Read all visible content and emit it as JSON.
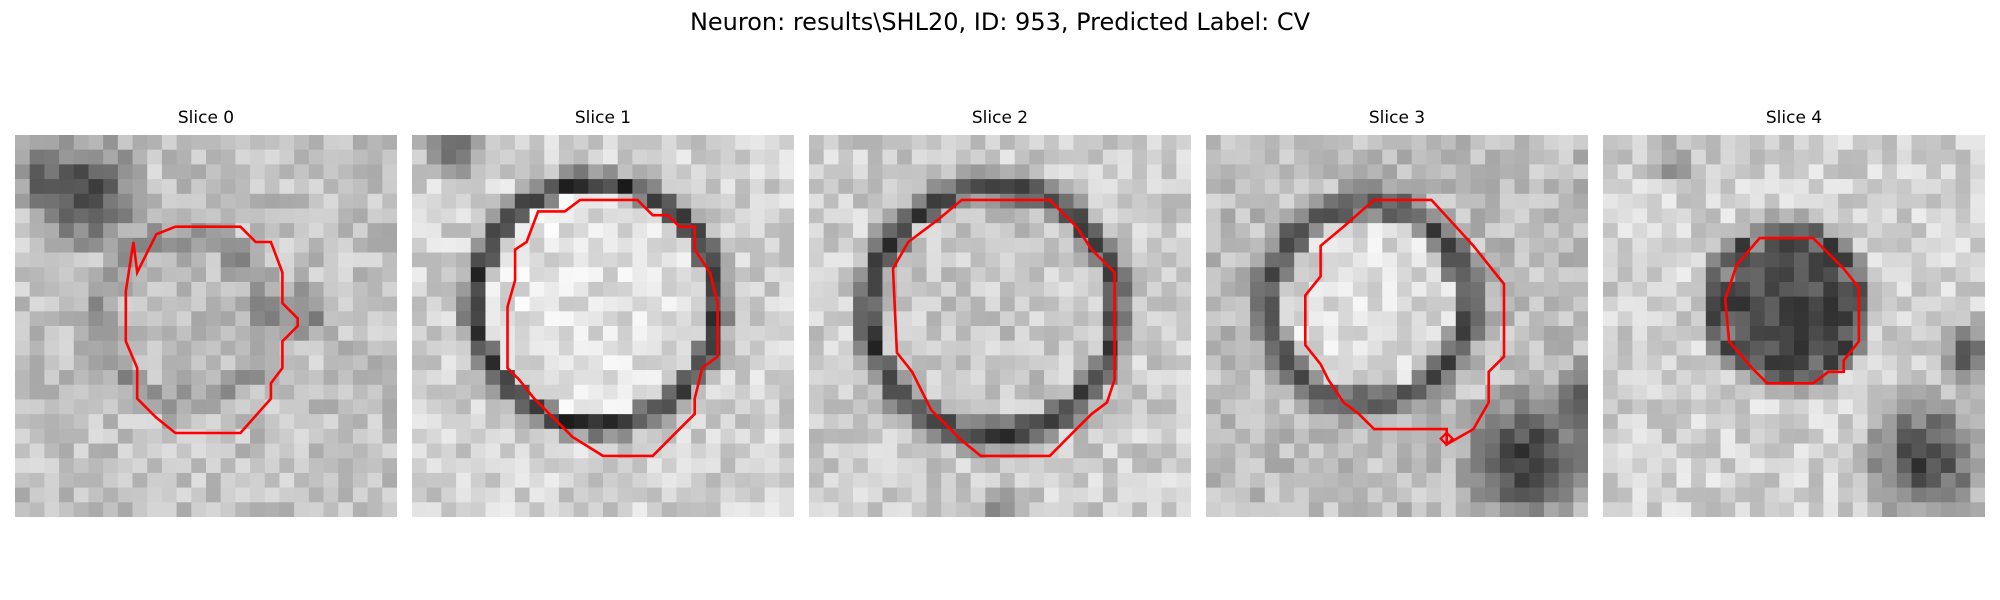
{
  "figure": {
    "suptitle": "Neuron: results\\SHL20, ID: 953, Predicted Label: CV",
    "outline_color": "#ff0000",
    "panels": [
      {
        "title": "Slice 0"
      },
      {
        "title": "Slice 1"
      },
      {
        "title": "Slice 2"
      },
      {
        "title": "Slice 3"
      },
      {
        "title": "Slice 4"
      }
    ]
  }
}
